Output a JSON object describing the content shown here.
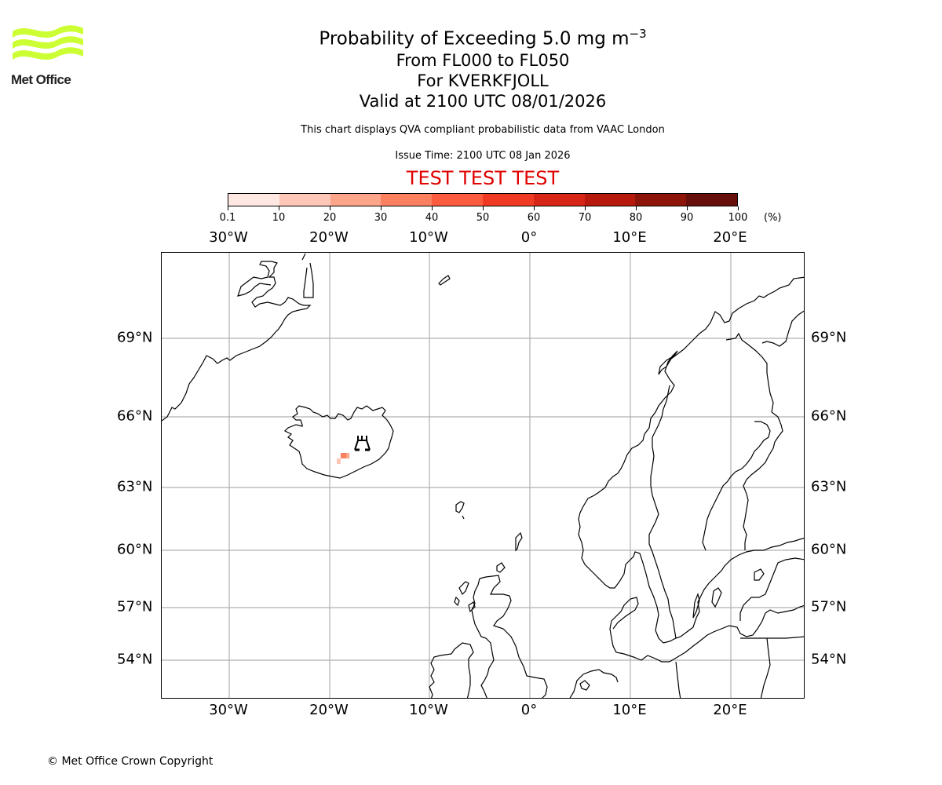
{
  "logo": {
    "text": "Met Office",
    "color": "#ccff33"
  },
  "header": {
    "title": "Probability of Exceeding 5.0 mg m",
    "title_superscript": "−3",
    "line2": "From FL000 to FL050",
    "line3": "For KVERKFJOLL",
    "line4": "Valid at 2100 UTC 08/01/2026",
    "description": "This chart displays QVA compliant probabilistic data from VAAC London",
    "issue_time": "Issue Time: 2100 UTC 08 Jan 2026",
    "test_banner": "TEST TEST TEST",
    "test_color": "#e00000"
  },
  "colorbar": {
    "unit": "(%)",
    "ticks": [
      "0.1",
      "10",
      "20",
      "30",
      "40",
      "50",
      "60",
      "70",
      "80",
      "90",
      "100"
    ],
    "colors": [
      "#fee8e1",
      "#fdc7b7",
      "#fca58b",
      "#fb8060",
      "#fb5b3e",
      "#f03a24",
      "#d72517",
      "#b71a0d",
      "#8d1409",
      "#67100b"
    ]
  },
  "map": {
    "lon_labels": [
      "30°W",
      "20°W",
      "10°W",
      "0°",
      "10°E",
      "20°E"
    ],
    "lat_labels": [
      "69°N",
      "66°N",
      "63°N",
      "60°N",
      "57°N",
      "54°N"
    ],
    "volcano": {
      "name": "KVERKFJOLL",
      "icon": "volcano-icon"
    },
    "probability_cells": [
      {
        "lon": -18.7,
        "lat": 64.2,
        "color": "#fb8060"
      },
      {
        "lon": -18.3,
        "lat": 64.2,
        "color": "#fca58b"
      },
      {
        "lon": -19.2,
        "lat": 63.95,
        "color": "#fdc7b7"
      }
    ]
  },
  "footer": {
    "copyright": "© Met Office Crown Copyright"
  }
}
